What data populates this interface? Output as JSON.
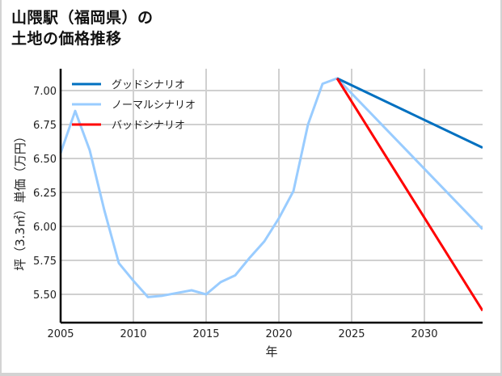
{
  "chart_data": {
    "type": "line",
    "title": "山隈駅（福岡県）の\n土地の価格推移",
    "title_lines": [
      "山隈駅（福岡県）の",
      "土地の価格推移"
    ],
    "xlabel": "年",
    "ylabel": "坪（3.3㎡）単価（万円）",
    "xlim": [
      2005,
      2034
    ],
    "ylim": [
      5.3,
      7.2
    ],
    "x_ticks": [
      "2005",
      "2010",
      "2015",
      "2020",
      "2025",
      "2030"
    ],
    "y_ticks": [
      "5.50",
      "5.75",
      "6.00",
      "6.25",
      "6.50",
      "6.75",
      "7.00"
    ],
    "grid": true,
    "legend_position": "upper left",
    "series": [
      {
        "name": "グッドシナリオ",
        "color": "#0070c0",
        "x": [
          2024,
          2034
        ],
        "values": [
          7.09,
          6.58
        ]
      },
      {
        "name": "ノーマルシナリオ",
        "color": "#99ccff",
        "x": [
          2005,
          2006,
          2007,
          2008,
          2009,
          2010,
          2011,
          2012,
          2013,
          2014,
          2015,
          2016,
          2017,
          2018,
          2019,
          2020,
          2021,
          2022,
          2023,
          2024,
          2034
        ],
        "values": [
          6.54,
          6.85,
          6.56,
          6.12,
          5.73,
          5.6,
          5.48,
          5.49,
          5.51,
          5.53,
          5.5,
          5.59,
          5.64,
          5.77,
          5.89,
          6.06,
          6.26,
          6.75,
          7.05,
          7.09,
          5.98
        ]
      },
      {
        "name": "バッドシナリオ",
        "color": "#ff0000",
        "x": [
          2024,
          2034
        ],
        "values": [
          7.09,
          5.38
        ]
      }
    ]
  }
}
